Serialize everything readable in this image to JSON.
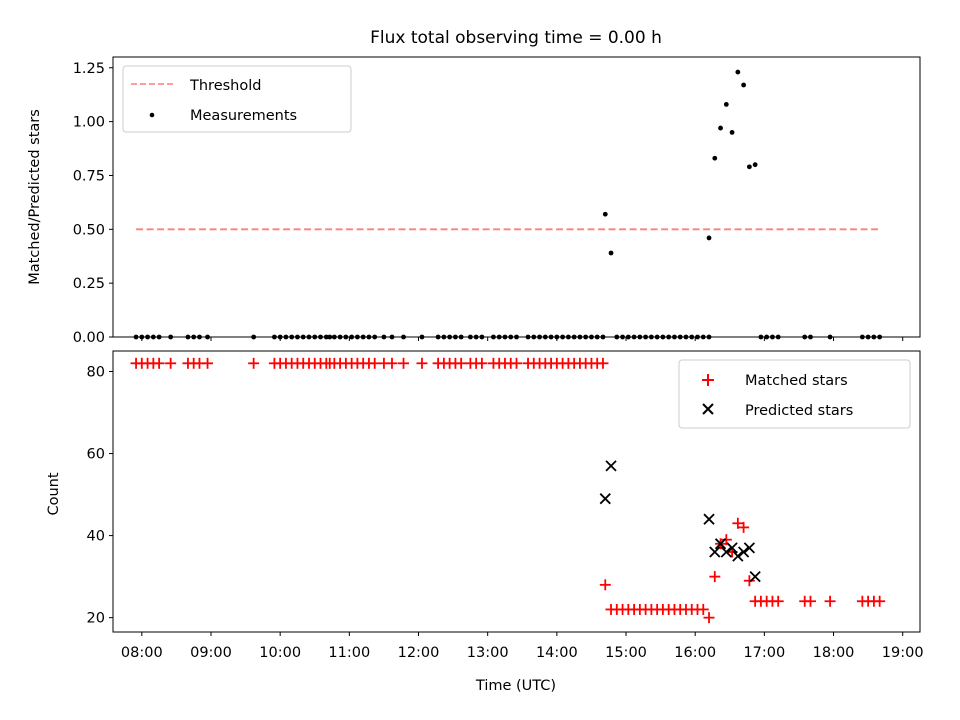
{
  "title": "Flux total observing time = 0.00 h",
  "xlabel": "Time (UTC)",
  "colors": {
    "threshold": "#ff7f7f",
    "measurement": "#000000",
    "matched": "#ff0000",
    "predicted": "#000000"
  },
  "chart_data": [
    {
      "type": "scatter",
      "panel": "top",
      "ylabel": "Matched/Predicted stars",
      "xlim": [
        "07:35",
        "19:15"
      ],
      "ylim": [
        0,
        1.3
      ],
      "yticks": [
        0.0,
        0.25,
        0.5,
        0.75,
        1.0,
        1.25
      ],
      "ytick_labels": [
        "0.00",
        "0.25",
        "0.50",
        "0.75",
        "1.00",
        "1.25"
      ],
      "legend_position": "upper left",
      "threshold": {
        "name": "Threshold",
        "value": 0.5,
        "x_range": [
          "07:55",
          "18:40"
        ]
      },
      "measurements": {
        "name": "Measurements",
        "zero_times": [
          "07:55",
          "08:00",
          "08:05",
          "08:10",
          "08:15",
          "08:25",
          "08:40",
          "08:45",
          "08:50",
          "08:57",
          "09:37",
          "09:55",
          "10:00",
          "10:05",
          "10:10",
          "10:15",
          "10:20",
          "10:25",
          "10:30",
          "10:35",
          "10:40",
          "10:43",
          "10:47",
          "10:52",
          "10:57",
          "11:02",
          "11:07",
          "11:12",
          "11:17",
          "11:22",
          "11:30",
          "11:37",
          "11:47",
          "12:03",
          "12:17",
          "12:22",
          "12:27",
          "12:32",
          "12:37",
          "12:45",
          "12:50",
          "12:55",
          "13:05",
          "13:10",
          "13:15",
          "13:20",
          "13:25",
          "13:35",
          "13:40",
          "13:45",
          "13:50",
          "13:55",
          "14:00",
          "14:05",
          "14:10",
          "14:15",
          "14:20",
          "14:25",
          "14:30",
          "14:35",
          "14:40",
          "14:52",
          "14:57",
          "15:02",
          "15:07",
          "15:12",
          "15:17",
          "15:22",
          "15:27",
          "15:32",
          "15:37",
          "15:42",
          "15:47",
          "15:52",
          "15:57",
          "16:02",
          "16:07",
          "16:12",
          "16:57",
          "17:02",
          "17:07",
          "17:12",
          "17:35",
          "17:40",
          "17:57",
          "18:25",
          "18:30",
          "18:35",
          "18:40"
        ],
        "points": [
          {
            "x": "14:42",
            "y": 0.57
          },
          {
            "x": "14:47",
            "y": 0.39
          },
          {
            "x": "16:12",
            "y": 0.46
          },
          {
            "x": "16:17",
            "y": 0.83
          },
          {
            "x": "16:22",
            "y": 0.97
          },
          {
            "x": "16:27",
            "y": 1.08
          },
          {
            "x": "16:32",
            "y": 0.95
          },
          {
            "x": "16:37",
            "y": 1.23
          },
          {
            "x": "16:42",
            "y": 1.17
          },
          {
            "x": "16:47",
            "y": 0.79
          },
          {
            "x": "16:52",
            "y": 0.8
          }
        ]
      }
    },
    {
      "type": "scatter",
      "panel": "bottom",
      "ylabel": "Count",
      "xlim": [
        "07:35",
        "19:15"
      ],
      "ylim": [
        16.5,
        85
      ],
      "yticks": [
        20,
        40,
        60,
        80
      ],
      "ytick_labels": [
        "20",
        "40",
        "60",
        "80"
      ],
      "xticks": [
        "08:00",
        "09:00",
        "10:00",
        "11:00",
        "12:00",
        "13:00",
        "14:00",
        "15:00",
        "16:00",
        "17:00",
        "18:00",
        "19:00"
      ],
      "legend_position": "upper right",
      "matched": {
        "name": "Matched stars",
        "value_82_times": [
          "07:55",
          "08:00",
          "08:05",
          "08:10",
          "08:15",
          "08:25",
          "08:40",
          "08:45",
          "08:50",
          "08:57",
          "09:37",
          "09:55",
          "10:00",
          "10:05",
          "10:10",
          "10:15",
          "10:20",
          "10:25",
          "10:30",
          "10:35",
          "10:40",
          "10:43",
          "10:47",
          "10:52",
          "10:57",
          "11:02",
          "11:07",
          "11:12",
          "11:17",
          "11:22",
          "11:30",
          "11:37",
          "11:47",
          "12:03",
          "12:17",
          "12:22",
          "12:27",
          "12:32",
          "12:37",
          "12:45",
          "12:50",
          "12:55",
          "13:05",
          "13:10",
          "13:15",
          "13:20",
          "13:25",
          "13:35",
          "13:40",
          "13:45",
          "13:50",
          "13:55",
          "14:00",
          "14:05",
          "14:10",
          "14:15",
          "14:20",
          "14:25",
          "14:30",
          "14:35",
          "14:40"
        ],
        "value_22_times": [
          "14:47",
          "14:52",
          "14:57",
          "15:02",
          "15:07",
          "15:12",
          "15:17",
          "15:22",
          "15:27",
          "15:32",
          "15:37",
          "15:42",
          "15:47",
          "15:52",
          "15:57",
          "16:02",
          "16:07"
        ],
        "value_24_times": [
          "16:52",
          "16:57",
          "17:02",
          "17:07",
          "17:12",
          "17:35",
          "17:40",
          "17:57",
          "18:25",
          "18:30",
          "18:35",
          "18:40"
        ],
        "points": [
          {
            "x": "14:42",
            "y": 28
          },
          {
            "x": "16:12",
            "y": 20
          },
          {
            "x": "16:17",
            "y": 30
          },
          {
            "x": "16:22",
            "y": 38
          },
          {
            "x": "16:27",
            "y": 39
          },
          {
            "x": "16:32",
            "y": 36
          },
          {
            "x": "16:37",
            "y": 43
          },
          {
            "x": "16:42",
            "y": 42
          },
          {
            "x": "16:47",
            "y": 29
          }
        ]
      },
      "predicted": {
        "name": "Predicted stars",
        "points": [
          {
            "x": "14:42",
            "y": 49
          },
          {
            "x": "14:47",
            "y": 57
          },
          {
            "x": "16:12",
            "y": 44
          },
          {
            "x": "16:17",
            "y": 36
          },
          {
            "x": "16:22",
            "y": 38
          },
          {
            "x": "16:27",
            "y": 36
          },
          {
            "x": "16:32",
            "y": 37
          },
          {
            "x": "16:37",
            "y": 35
          },
          {
            "x": "16:42",
            "y": 36
          },
          {
            "x": "16:47",
            "y": 37
          },
          {
            "x": "16:52",
            "y": 30
          }
        ]
      }
    }
  ]
}
